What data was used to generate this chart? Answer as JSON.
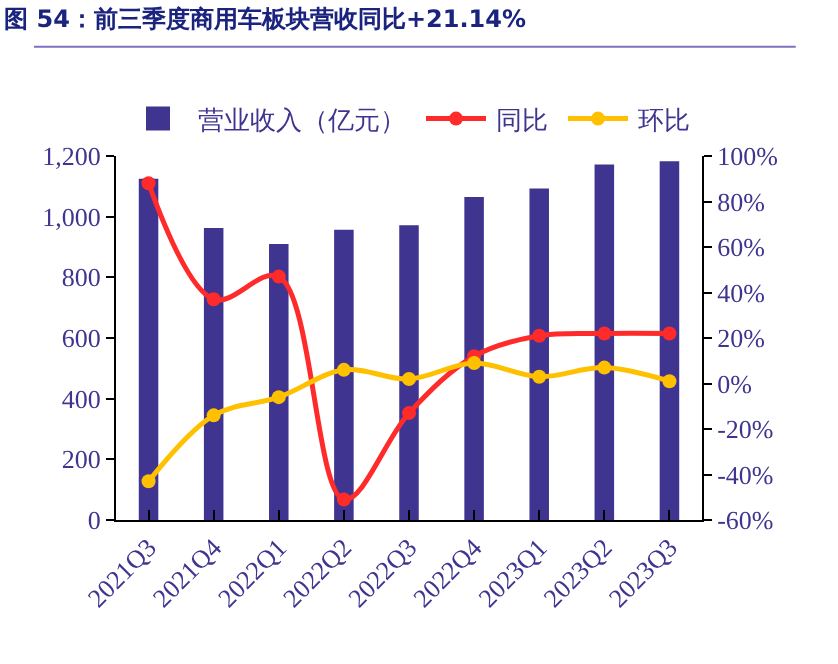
{
  "chart_data": {
    "type": "bar",
    "title": "图 54：前三季度商用车板块营收同比+21.14%",
    "categories": [
      "2021Q3",
      "2021Q4",
      "2022Q1",
      "2022Q2",
      "2022Q3",
      "2022Q4",
      "2023Q1",
      "2023Q2",
      "2023Q3"
    ],
    "series": [
      {
        "name": "营业收入（亿元）",
        "color": "#3f3590",
        "values": [
          1125,
          963,
          910,
          957,
          972,
          1065,
          1093,
          1172,
          1183
        ]
      },
      {
        "name": "同比",
        "type": "line",
        "axis": "y2",
        "color": "#ff2a2a",
        "values": [
          88,
          37,
          47,
          -51,
          -13,
          12,
          21,
          22,
          22
        ]
      },
      {
        "name": "环比",
        "type": "line",
        "axis": "y2",
        "color": "#ffc000",
        "values": [
          -43,
          -14,
          -6,
          6,
          2,
          9,
          3,
          7,
          1
        ]
      }
    ],
    "ylim": [
      0,
      1200
    ],
    "yticks": [
      0,
      200,
      400,
      600,
      800,
      {
        "value": 1000,
        "label": "1,000"
      },
      {
        "value": 1200,
        "label": "1,200"
      }
    ],
    "y2lim": [
      -60,
      100
    ],
    "y2ticks": [
      {
        "value": -60,
        "label": "-60%"
      },
      {
        "value": -40,
        "label": "-40%"
      },
      {
        "value": -20,
        "label": "-20%"
      },
      {
        "value": 0,
        "label": "0%"
      },
      {
        "value": 20,
        "label": "20%"
      },
      {
        "value": 40,
        "label": "40%"
      },
      {
        "value": 60,
        "label": "60%"
      },
      {
        "value": 80,
        "label": "80%"
      },
      {
        "value": 100,
        "label": "100%"
      }
    ],
    "legend": "top",
    "grid": false,
    "marker": "circle",
    "line_style": "solid"
  }
}
